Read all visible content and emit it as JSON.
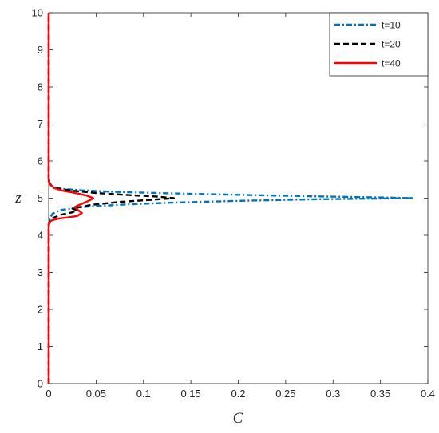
{
  "chart_data": {
    "type": "line",
    "title": "",
    "xlabel": "C",
    "ylabel": "z",
    "xlim": [
      0,
      0.4
    ],
    "ylim": [
      0,
      10
    ],
    "xticks": [
      0,
      0.05,
      0.1,
      0.15,
      0.2,
      0.25,
      0.3,
      0.35,
      0.4
    ],
    "xtick_labels": [
      "0",
      "0.05",
      "0.1",
      "0.15",
      "0.2",
      "0.25",
      "0.3",
      "0.35",
      "0.4"
    ],
    "yticks": [
      0,
      1,
      2,
      3,
      4,
      5,
      6,
      7,
      8,
      9,
      10
    ],
    "ytick_labels": [
      "0",
      "1",
      "2",
      "3",
      "4",
      "5",
      "6",
      "7",
      "8",
      "9",
      "10"
    ],
    "grid": false,
    "legend_position": "top-right",
    "series": [
      {
        "name": "t=10",
        "color": "#0072BD",
        "dash": "dash-dot",
        "points": [
          [
            0,
            0
          ],
          [
            0,
            4.2
          ],
          [
            0.001,
            4.45
          ],
          [
            0.004,
            4.58
          ],
          [
            0.012,
            4.68
          ],
          [
            0.04,
            4.77
          ],
          [
            0.08,
            4.83
          ],
          [
            0.13,
            4.88
          ],
          [
            0.2,
            4.93
          ],
          [
            0.28,
            4.97
          ],
          [
            0.35,
            4.99
          ],
          [
            0.385,
            5.0
          ],
          [
            0.35,
            5.02
          ],
          [
            0.28,
            5.05
          ],
          [
            0.2,
            5.09
          ],
          [
            0.13,
            5.13
          ],
          [
            0.07,
            5.17
          ],
          [
            0.035,
            5.21
          ],
          [
            0.015,
            5.25
          ],
          [
            0.005,
            5.3
          ],
          [
            0.001,
            5.4
          ],
          [
            0,
            5.6
          ],
          [
            0,
            10
          ]
        ]
      },
      {
        "name": "t=20",
        "color": "#000000",
        "dash": "dash",
        "points": [
          [
            0,
            0
          ],
          [
            0,
            4.3
          ],
          [
            0.003,
            4.45
          ],
          [
            0.012,
            4.55
          ],
          [
            0.025,
            4.62
          ],
          [
            0.03,
            4.67
          ],
          [
            0.025,
            4.72
          ],
          [
            0.045,
            4.82
          ],
          [
            0.075,
            4.9
          ],
          [
            0.11,
            4.96
          ],
          [
            0.132,
            5.0
          ],
          [
            0.115,
            5.04
          ],
          [
            0.08,
            5.09
          ],
          [
            0.05,
            5.14
          ],
          [
            0.025,
            5.2
          ],
          [
            0.01,
            5.26
          ],
          [
            0.003,
            5.33
          ],
          [
            0,
            5.45
          ],
          [
            0,
            10
          ]
        ]
      },
      {
        "name": "t=40",
        "color": "#FF0000",
        "dash": "solid",
        "points": [
          [
            0,
            0
          ],
          [
            0,
            4.3
          ],
          [
            0.003,
            4.4
          ],
          [
            0.01,
            4.45
          ],
          [
            0.02,
            4.48
          ],
          [
            0.03,
            4.52
          ],
          [
            0.035,
            4.6
          ],
          [
            0.03,
            4.7
          ],
          [
            0.028,
            4.77
          ],
          [
            0.035,
            4.85
          ],
          [
            0.044,
            4.95
          ],
          [
            0.047,
            5.0
          ],
          [
            0.04,
            5.07
          ],
          [
            0.028,
            5.14
          ],
          [
            0.015,
            5.2
          ],
          [
            0.006,
            5.27
          ],
          [
            0.002,
            5.35
          ],
          [
            0,
            5.45
          ],
          [
            0,
            10
          ]
        ]
      }
    ]
  }
}
